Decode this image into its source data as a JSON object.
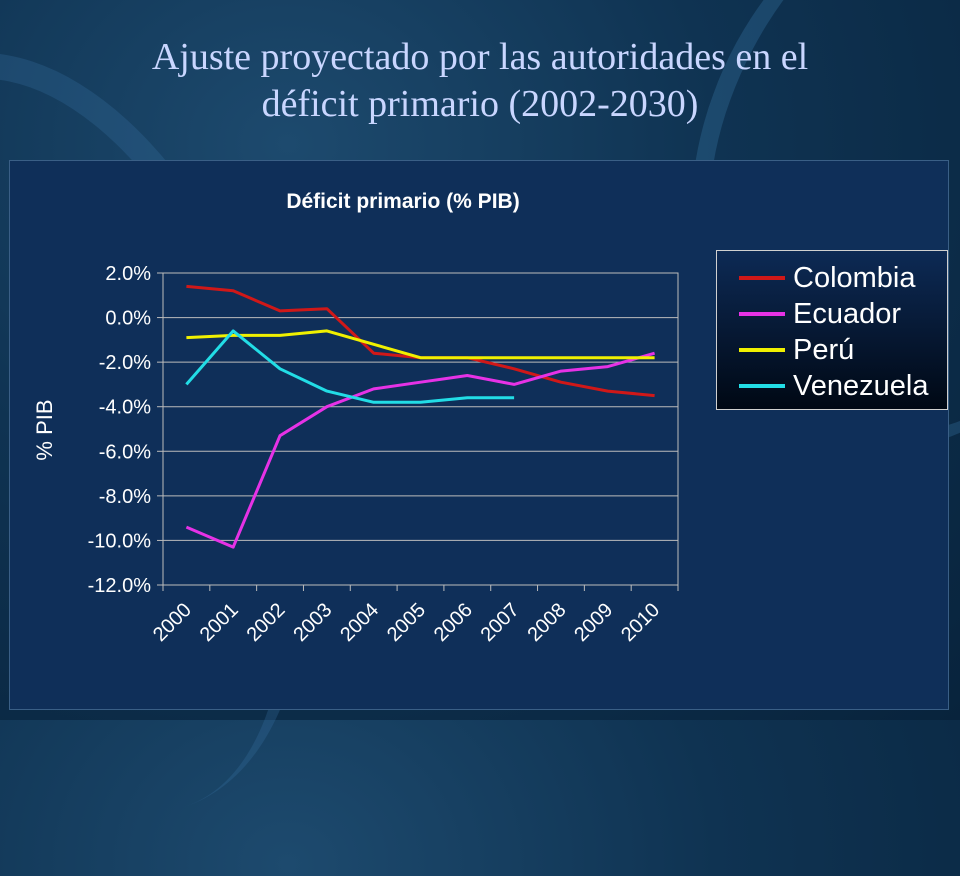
{
  "slide": {
    "title_line1": "Ajuste proyectado por las autoridades en el",
    "title_line2": "déficit primario (2002-2030)"
  },
  "colors": {
    "background": "#0f3352",
    "plot_area": "#0f2f59",
    "colombia": "#d01818",
    "ecuador": "#e632e6",
    "peru": "#f0f000",
    "venezuela": "#22dde6",
    "text": "#ffffff",
    "title_text": "#c9d6ff"
  },
  "chart_data": {
    "type": "line",
    "title": "Déficit primario (% PIB)",
    "xlabel": "",
    "ylabel": "% PIB",
    "ylim": [
      -12,
      2
    ],
    "yticks": [
      2,
      0,
      -2,
      -4,
      -6,
      -8,
      -10,
      -12
    ],
    "ytick_labels": [
      "2.0%",
      "0.0%",
      "-2.0%",
      "-4.0%",
      "-6.0%",
      "-8.0%",
      "-10.0%",
      "-12.0%"
    ],
    "categories": [
      "2000",
      "2001",
      "2002",
      "2003",
      "2004",
      "2005",
      "2006",
      "2007",
      "2008",
      "2009",
      "2010"
    ],
    "grid": true,
    "legend_position": "right",
    "series": [
      {
        "name": "Colombia",
        "color": "#d01818",
        "values": [
          1.4,
          1.2,
          0.3,
          0.4,
          -1.6,
          -1.8,
          -1.8,
          -2.3,
          -2.9,
          -3.3,
          -3.5
        ]
      },
      {
        "name": "Ecuador",
        "color": "#e632e6",
        "values": [
          -9.4,
          -10.3,
          -5.3,
          -4.0,
          -3.2,
          -2.9,
          -2.6,
          -3.0,
          -2.4,
          -2.2,
          -1.6
        ]
      },
      {
        "name": "Perú",
        "color": "#f0f000",
        "values": [
          -0.9,
          -0.8,
          -0.8,
          -0.6,
          -1.2,
          -1.8,
          -1.8,
          -1.8,
          -1.8,
          -1.8,
          -1.8
        ]
      },
      {
        "name": "Venezuela",
        "color": "#22dde6",
        "values": [
          -3.0,
          -0.6,
          -2.3,
          -3.3,
          -3.8,
          -3.8,
          -3.6,
          -3.6,
          null,
          null,
          null
        ]
      }
    ]
  }
}
